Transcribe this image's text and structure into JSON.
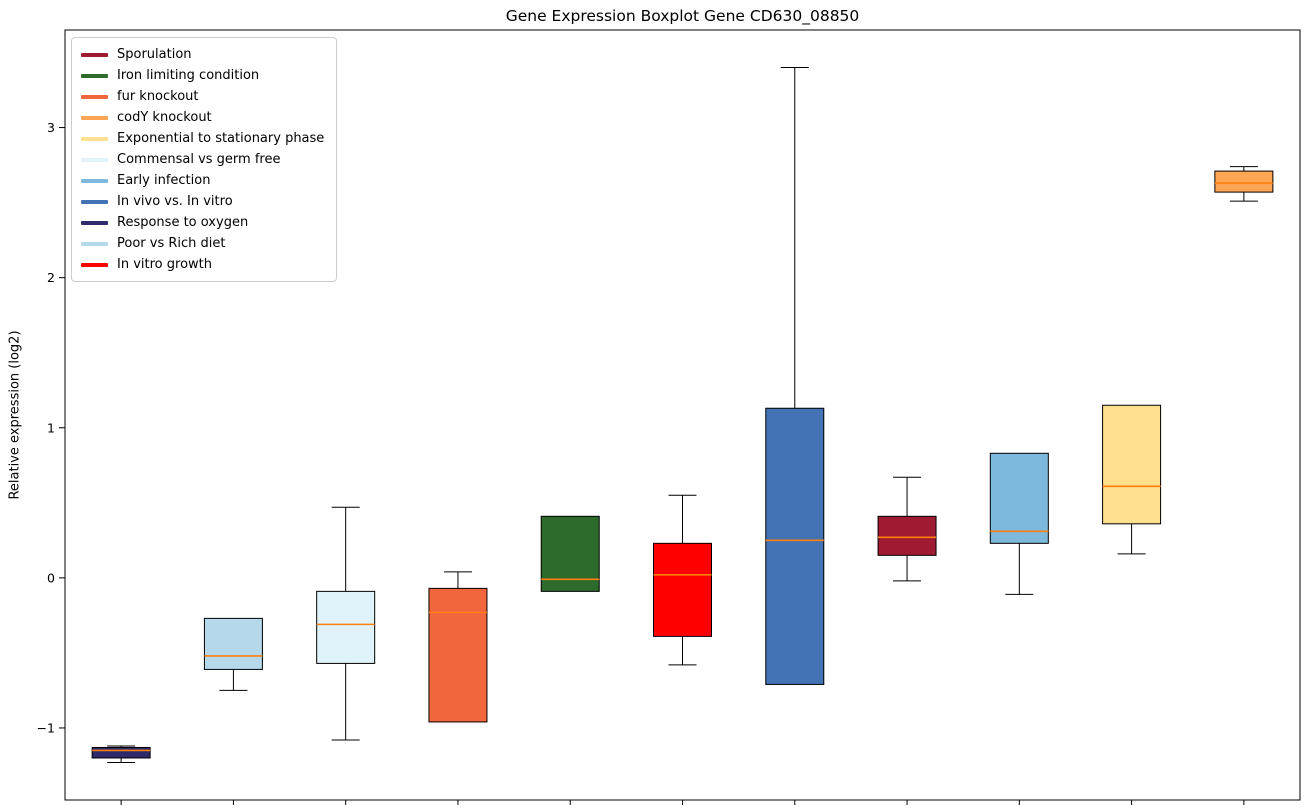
{
  "chart_data": {
    "type": "boxplot",
    "title": "Gene Expression Boxplot Gene CD630_08850",
    "xlabel": "",
    "ylabel": "Relative expression (log2)",
    "ylim": [
      -1.48,
      3.65
    ],
    "yticks": [
      3,
      2,
      1,
      0,
      -1
    ],
    "grid": false,
    "legend_position": "upper left",
    "median_color": "#ff7f0e",
    "series": [
      {
        "name": "Response to oxygen",
        "color": "#2e2a6b",
        "position": 1,
        "whisker_low": -1.23,
        "q1": -1.2,
        "median": -1.15,
        "q3": -1.13,
        "whisker_high": -1.12
      },
      {
        "name": "Poor vs Rich diet",
        "color": "#b5d8eb",
        "position": 2,
        "whisker_low": -0.75,
        "q1": -0.61,
        "median": -0.52,
        "q3": -0.27,
        "whisker_high": -0.27
      },
      {
        "name": "Commensal vs germ free",
        "color": "#e0f3fa",
        "position": 3,
        "whisker_low": -1.08,
        "q1": -0.57,
        "median": -0.31,
        "q3": -0.09,
        "whisker_high": 0.47
      },
      {
        "name": "fur knockout",
        "color": "#f2663e",
        "position": 4,
        "whisker_low": -0.96,
        "q1": -0.96,
        "median": -0.23,
        "q3": -0.07,
        "whisker_high": 0.04
      },
      {
        "name": "Iron limiting condition",
        "color": "#2c6b2c",
        "position": 5,
        "whisker_low": -0.09,
        "q1": -0.09,
        "median": -0.01,
        "q3": 0.41,
        "whisker_high": 0.41
      },
      {
        "name": "In vitro growth",
        "color": "#ff0000",
        "position": 6,
        "whisker_low": -0.58,
        "q1": -0.39,
        "median": 0.02,
        "q3": 0.23,
        "whisker_high": 0.55
      },
      {
        "name": "In vivo vs. In vitro",
        "color": "#4473b5",
        "position": 7,
        "whisker_low": -0.71,
        "q1": -0.71,
        "median": 0.25,
        "q3": 1.13,
        "whisker_high": 3.4
      },
      {
        "name": "Sporulation",
        "color": "#9e1b32",
        "position": 8,
        "whisker_low": -0.02,
        "q1": 0.15,
        "median": 0.27,
        "q3": 0.41,
        "whisker_high": 0.67
      },
      {
        "name": "Early infection",
        "color": "#7db8dd",
        "position": 9,
        "whisker_low": -0.11,
        "q1": 0.23,
        "median": 0.31,
        "q3": 0.83,
        "whisker_high": 0.83
      },
      {
        "name": "Exponential to stationary phase",
        "color": "#ffe08e",
        "position": 10,
        "whisker_low": 0.16,
        "q1": 0.36,
        "median": 0.61,
        "q3": 1.15,
        "whisker_high": 1.15
      },
      {
        "name": "codY knockout",
        "color": "#ffa654",
        "position": 11,
        "whisker_low": 2.51,
        "q1": 2.57,
        "median": 2.63,
        "q3": 2.71,
        "whisker_high": 2.74
      }
    ],
    "legend": [
      "Sporulation",
      "Iron limiting condition",
      "fur knockout",
      "codY knockout",
      "Exponential to stationary phase",
      "Commensal vs germ free",
      "Early infection",
      "In vivo vs. In vitro",
      "Response to oxygen",
      "Poor vs Rich diet",
      "In vitro growth"
    ]
  }
}
